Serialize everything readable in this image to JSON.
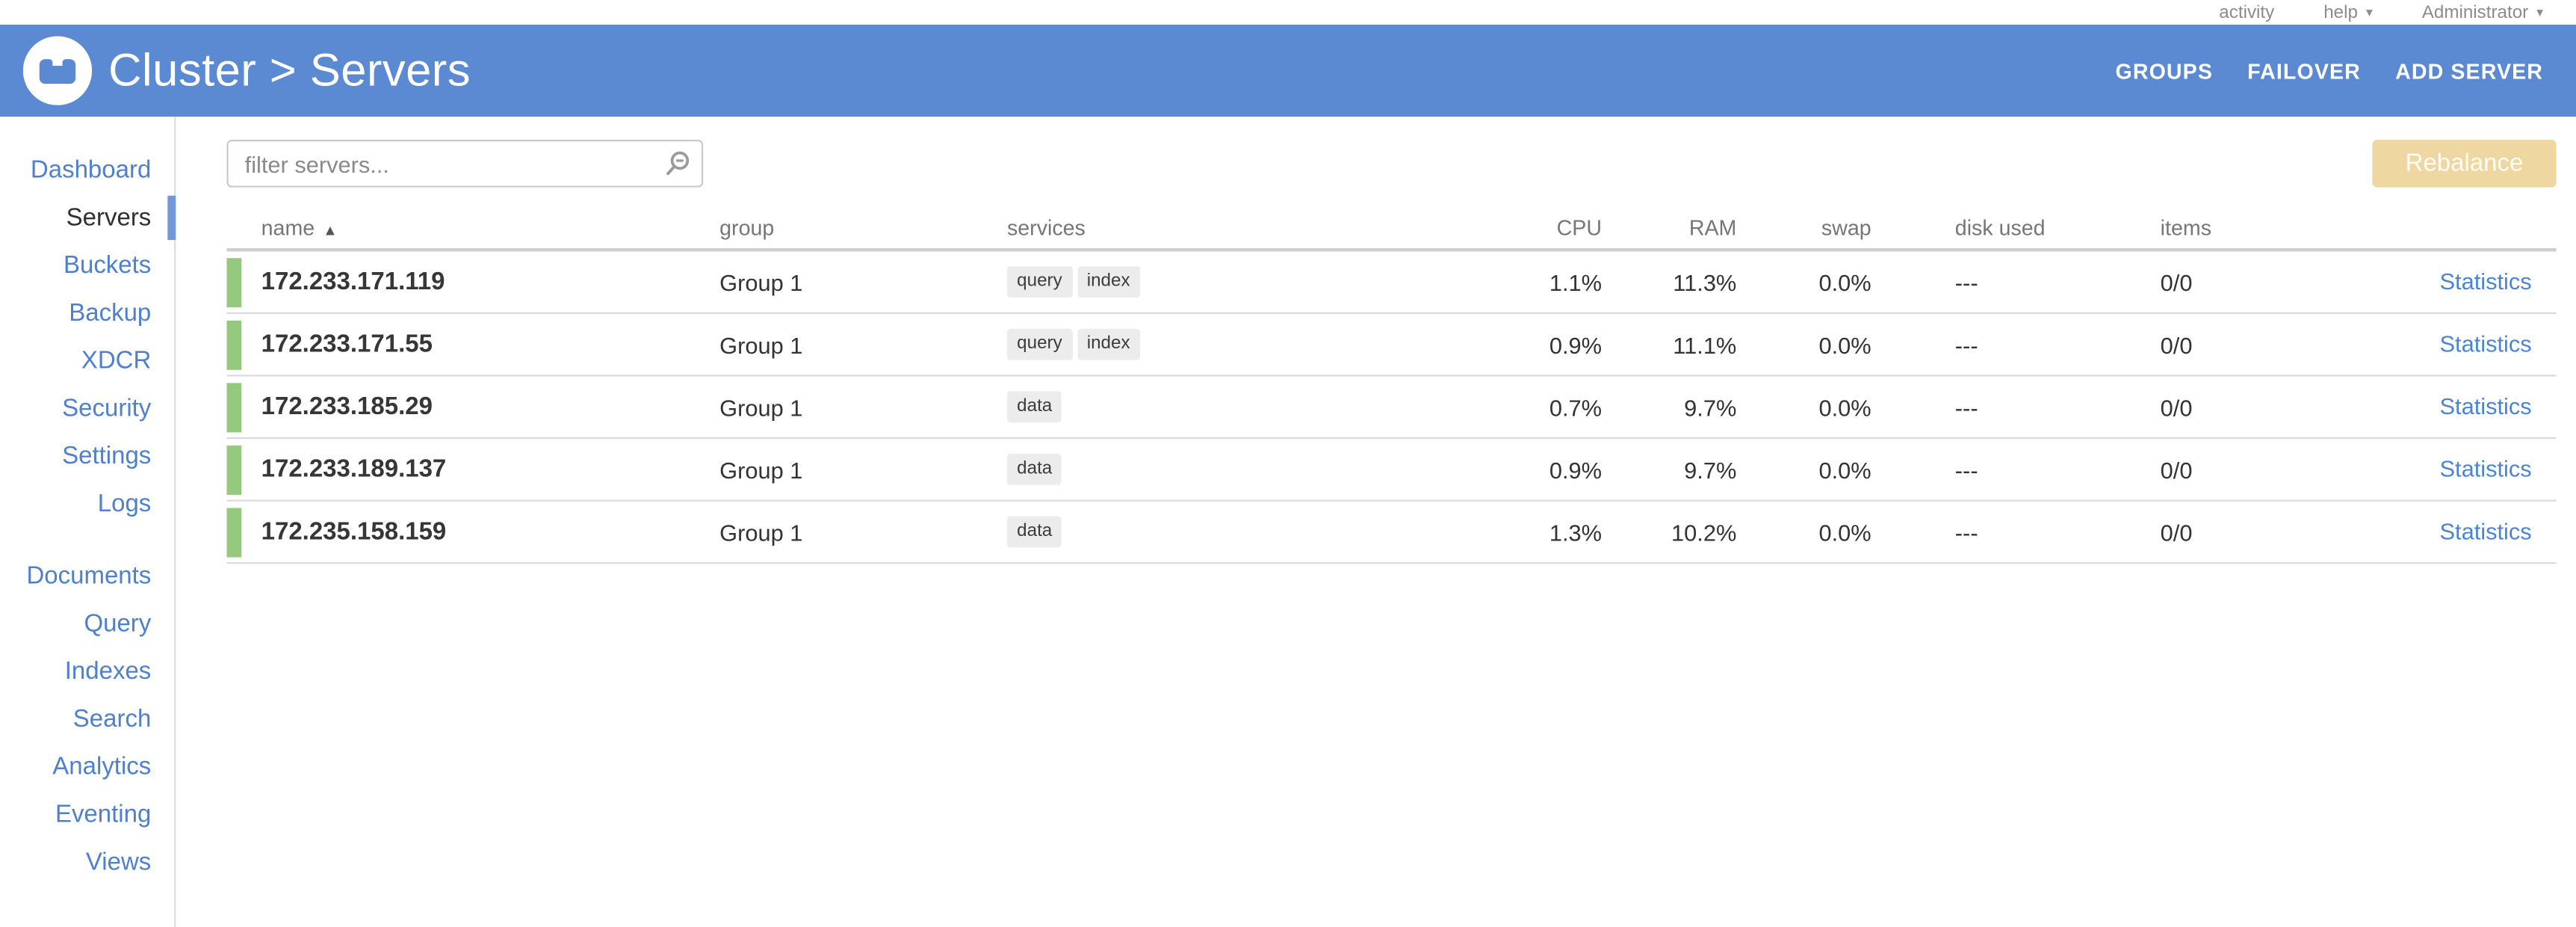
{
  "theme": {
    "header-bg": "#5b89d2",
    "link-blue": "#4e80ce",
    "nav-active": "#303030",
    "healthy-green": "#95c97e",
    "rebalance-bg": "#efd7a2",
    "badge-bg": "#ececec",
    "stats-link": "#4c84d4"
  },
  "utility_bar": {
    "activity_label": "activity",
    "help_label": "help",
    "user_label": "Administrator",
    "caret_icon": "▾"
  },
  "header": {
    "title": "Cluster > Servers",
    "actions": [
      {
        "label": "GROUPS"
      },
      {
        "label": "FAILOVER"
      },
      {
        "label": "ADD SERVER"
      }
    ]
  },
  "sidebar": {
    "primary_items": [
      {
        "label": "Dashboard"
      },
      {
        "label": "Servers",
        "active": true
      },
      {
        "label": "Buckets"
      },
      {
        "label": "Backup"
      },
      {
        "label": "XDCR"
      },
      {
        "label": "Security"
      },
      {
        "label": "Settings"
      },
      {
        "label": "Logs"
      }
    ],
    "secondary_items": [
      {
        "label": "Documents"
      },
      {
        "label": "Query"
      },
      {
        "label": "Indexes"
      },
      {
        "label": "Search"
      },
      {
        "label": "Analytics"
      },
      {
        "label": "Eventing"
      },
      {
        "label": "Views"
      }
    ]
  },
  "toolbar": {
    "filter_placeholder": "filter servers...",
    "rebalance_label": "Rebalance",
    "rebalance_enabled": false
  },
  "table": {
    "columns": {
      "name": "name",
      "group": "group",
      "services": "services",
      "cpu": "CPU",
      "ram": "RAM",
      "swap": "swap",
      "disk": "disk used",
      "items": "items"
    },
    "sort": {
      "column": "name",
      "direction": "asc",
      "indicator": "▲"
    },
    "statistics_label": "Statistics",
    "rows": [
      {
        "name": "172.233.171.119",
        "group": "Group 1",
        "services": [
          "query",
          "index"
        ],
        "cpu": "1.1%",
        "ram": "11.3%",
        "swap": "0.0%",
        "disk_used": "---",
        "items": "0/0"
      },
      {
        "name": "172.233.171.55",
        "group": "Group 1",
        "services": [
          "query",
          "index"
        ],
        "cpu": "0.9%",
        "ram": "11.1%",
        "swap": "0.0%",
        "disk_used": "---",
        "items": "0/0"
      },
      {
        "name": "172.233.185.29",
        "group": "Group 1",
        "services": [
          "data"
        ],
        "cpu": "0.7%",
        "ram": "9.7%",
        "swap": "0.0%",
        "disk_used": "---",
        "items": "0/0"
      },
      {
        "name": "172.233.189.137",
        "group": "Group 1",
        "services": [
          "data"
        ],
        "cpu": "0.9%",
        "ram": "9.7%",
        "swap": "0.0%",
        "disk_used": "---",
        "items": "0/0"
      },
      {
        "name": "172.235.158.159",
        "group": "Group 1",
        "services": [
          "data"
        ],
        "cpu": "1.3%",
        "ram": "10.2%",
        "swap": "0.0%",
        "disk_used": "---",
        "items": "0/0"
      }
    ]
  }
}
